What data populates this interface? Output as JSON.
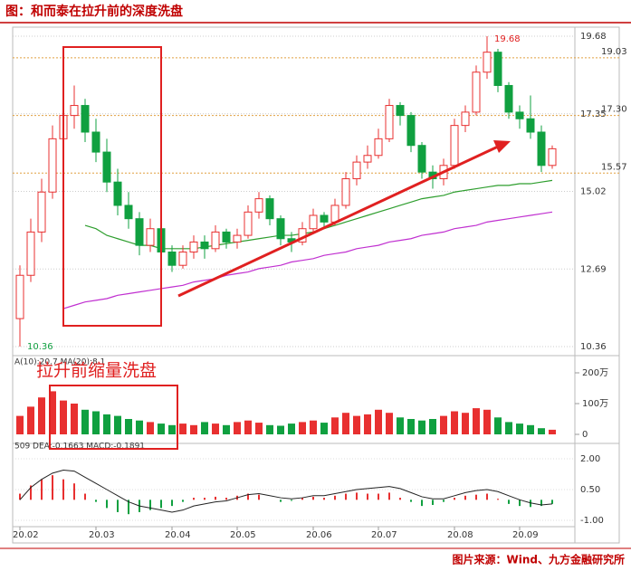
{
  "chart_data": {
    "type": "candlestick",
    "title": "图：和而泰在拉升前的深度洗盘",
    "source": "图片来源：Wind、九方金融研究所",
    "annotation": "拉升前缩量洗盘",
    "volume_legend": "A(10):20.7  MA(20):8.1",
    "macd_legend": "509 DEA:-0.1663 MACD:-0.1891",
    "categories": [
      "20.02",
      null,
      null,
      null,
      null,
      null,
      null,
      "20.03",
      null,
      null,
      null,
      null,
      null,
      null,
      "20.04",
      null,
      null,
      null,
      null,
      null,
      "20.05",
      null,
      null,
      null,
      null,
      null,
      null,
      "20.06",
      null,
      null,
      null,
      null,
      null,
      "20.07",
      null,
      null,
      null,
      null,
      null,
      null,
      "20.08",
      null,
      null,
      null,
      null,
      null,
      "20.09",
      null,
      null,
      null
    ],
    "ohlc": [
      [
        11.2,
        12.8,
        10.36,
        12.5
      ],
      [
        12.5,
        14.2,
        12.3,
        13.8
      ],
      [
        13.8,
        15.4,
        13.5,
        15.0
      ],
      [
        15.0,
        17.0,
        14.8,
        16.6
      ],
      [
        16.6,
        17.8,
        16.2,
        17.3
      ],
      [
        17.3,
        18.2,
        16.9,
        17.6
      ],
      [
        17.6,
        17.8,
        16.5,
        16.8
      ],
      [
        16.8,
        17.2,
        15.9,
        16.2
      ],
      [
        16.2,
        16.6,
        15.0,
        15.3
      ],
      [
        15.3,
        15.7,
        14.3,
        14.6
      ],
      [
        14.6,
        15.0,
        13.9,
        14.2
      ],
      [
        14.2,
        14.4,
        13.1,
        13.4
      ],
      [
        13.4,
        14.2,
        13.2,
        13.9
      ],
      [
        13.9,
        14.0,
        12.9,
        13.2
      ],
      [
        13.2,
        13.4,
        12.6,
        12.8
      ],
      [
        12.8,
        13.4,
        12.7,
        13.2
      ],
      [
        13.2,
        13.7,
        13.0,
        13.5
      ],
      [
        13.5,
        13.7,
        13.0,
        13.3
      ],
      [
        13.3,
        14.0,
        13.2,
        13.8
      ],
      [
        13.8,
        13.9,
        13.3,
        13.5
      ],
      [
        13.5,
        13.9,
        13.3,
        13.7
      ],
      [
        13.7,
        14.6,
        13.6,
        14.4
      ],
      [
        14.4,
        15.0,
        14.2,
        14.8
      ],
      [
        14.8,
        14.9,
        14.0,
        14.2
      ],
      [
        14.2,
        14.3,
        13.4,
        13.6
      ],
      [
        13.6,
        13.8,
        13.2,
        13.5
      ],
      [
        13.5,
        14.1,
        13.4,
        13.9
      ],
      [
        13.9,
        14.5,
        13.8,
        14.3
      ],
      [
        14.3,
        14.4,
        13.9,
        14.1
      ],
      [
        14.1,
        14.8,
        14.0,
        14.6
      ],
      [
        14.6,
        15.6,
        14.5,
        15.4
      ],
      [
        15.4,
        16.1,
        15.2,
        15.9
      ],
      [
        15.9,
        16.4,
        15.7,
        16.1
      ],
      [
        16.1,
        16.9,
        16.0,
        16.6
      ],
      [
        16.6,
        17.8,
        16.5,
        17.6
      ],
      [
        17.6,
        17.7,
        17.0,
        17.3
      ],
      [
        17.3,
        17.4,
        16.2,
        16.4
      ],
      [
        16.4,
        16.5,
        15.4,
        15.6
      ],
      [
        15.6,
        15.8,
        15.1,
        15.4
      ],
      [
        15.4,
        16.0,
        15.2,
        15.8
      ],
      [
        15.8,
        17.2,
        15.7,
        17.0
      ],
      [
        17.0,
        17.6,
        16.8,
        17.4
      ],
      [
        17.4,
        18.8,
        17.3,
        18.6
      ],
      [
        18.6,
        19.68,
        18.4,
        19.2
      ],
      [
        19.2,
        19.3,
        18.0,
        18.2
      ],
      [
        18.2,
        18.3,
        17.2,
        17.4
      ],
      [
        17.4,
        17.6,
        16.9,
        17.2
      ],
      [
        17.2,
        17.9,
        16.6,
        16.8
      ],
      [
        16.8,
        17.0,
        15.6,
        15.8
      ],
      [
        15.8,
        16.4,
        15.7,
        16.3
      ]
    ],
    "ma_lines": [
      {
        "color": "#2e9e2e",
        "values": [
          null,
          null,
          null,
          null,
          null,
          null,
          14.0,
          13.9,
          13.7,
          13.6,
          13.5,
          13.4,
          13.4,
          13.3,
          13.3,
          13.3,
          13.3,
          13.35,
          13.4,
          13.45,
          13.5,
          13.55,
          13.6,
          13.65,
          13.7,
          13.7,
          13.75,
          13.8,
          13.9,
          14.0,
          14.1,
          14.2,
          14.3,
          14.4,
          14.5,
          14.6,
          14.7,
          14.8,
          14.85,
          14.9,
          15.0,
          15.05,
          15.1,
          15.15,
          15.2,
          15.2,
          15.25,
          15.25,
          15.3,
          15.35
        ]
      },
      {
        "color": "#c030d0",
        "values": [
          null,
          null,
          null,
          null,
          11.5,
          11.6,
          11.7,
          11.75,
          11.8,
          11.9,
          11.95,
          12.0,
          12.05,
          12.1,
          12.15,
          12.2,
          12.3,
          12.35,
          12.4,
          12.5,
          12.55,
          12.6,
          12.7,
          12.75,
          12.8,
          12.9,
          12.95,
          13.0,
          13.1,
          13.15,
          13.2,
          13.3,
          13.35,
          13.4,
          13.5,
          13.55,
          13.6,
          13.7,
          13.75,
          13.8,
          13.9,
          13.95,
          14.0,
          14.1,
          14.15,
          14.2,
          14.25,
          14.3,
          14.35,
          14.4
        ]
      }
    ],
    "ylim": [
      10.36,
      19.68
    ],
    "yticks": [
      19.68,
      17.35,
      15.02,
      12.69,
      10.36
    ],
    "reference_lines": [
      19.03,
      {
        "value": 17.3,
        "label": "17.30"
      },
      15.57
    ],
    "volume": {
      "ylim": [
        0,
        200
      ],
      "yticks": [
        {
          "value": 200,
          "label": "200万"
        },
        {
          "value": 100,
          "label": "100万"
        },
        0
      ],
      "values": [
        60,
        90,
        120,
        140,
        110,
        100,
        80,
        75,
        65,
        60,
        50,
        45,
        40,
        35,
        30,
        35,
        30,
        40,
        35,
        30,
        40,
        45,
        38,
        30,
        28,
        35,
        40,
        45,
        38,
        55,
        70,
        60,
        65,
        80,
        70,
        55,
        50,
        45,
        50,
        60,
        75,
        70,
        85,
        80,
        55,
        40,
        35,
        30,
        20,
        15
      ]
    },
    "macd": {
      "ylim": [
        -1,
        2
      ],
      "yticks": [
        {
          "value": 2,
          "label": "2.00"
        },
        {
          "value": 0.5,
          "label": "0.50"
        },
        {
          "value": -1,
          "label": "-1.00"
        }
      ],
      "hist": [
        0.3,
        0.7,
        1.0,
        1.2,
        1.0,
        0.8,
        0.3,
        -0.1,
        -0.4,
        -0.6,
        -0.7,
        -0.6,
        -0.5,
        -0.4,
        -0.3,
        -0.1,
        0.1,
        0.1,
        0.15,
        0.1,
        0.2,
        0.3,
        0.25,
        0.0,
        -0.1,
        -0.05,
        0.1,
        0.15,
        0.1,
        0.2,
        0.3,
        0.35,
        0.3,
        0.3,
        0.35,
        0.1,
        -0.1,
        -0.3,
        -0.25,
        -0.1,
        0.1,
        0.2,
        0.25,
        0.3,
        0.05,
        -0.2,
        -0.3,
        -0.35,
        -0.3,
        -0.2
      ],
      "dif": [
        0.0,
        0.6,
        1.0,
        1.3,
        1.45,
        1.4,
        1.1,
        0.8,
        0.5,
        0.2,
        -0.1,
        -0.3,
        -0.4,
        -0.5,
        -0.6,
        -0.5,
        -0.3,
        -0.2,
        -0.1,
        -0.05,
        0.1,
        0.25,
        0.3,
        0.2,
        0.1,
        0.05,
        0.1,
        0.2,
        0.2,
        0.3,
        0.4,
        0.5,
        0.55,
        0.6,
        0.65,
        0.55,
        0.35,
        0.15,
        0.05,
        0.05,
        0.2,
        0.35,
        0.45,
        0.5,
        0.4,
        0.2,
        0.0,
        -0.15,
        -0.25,
        -0.2
      ]
    }
  }
}
